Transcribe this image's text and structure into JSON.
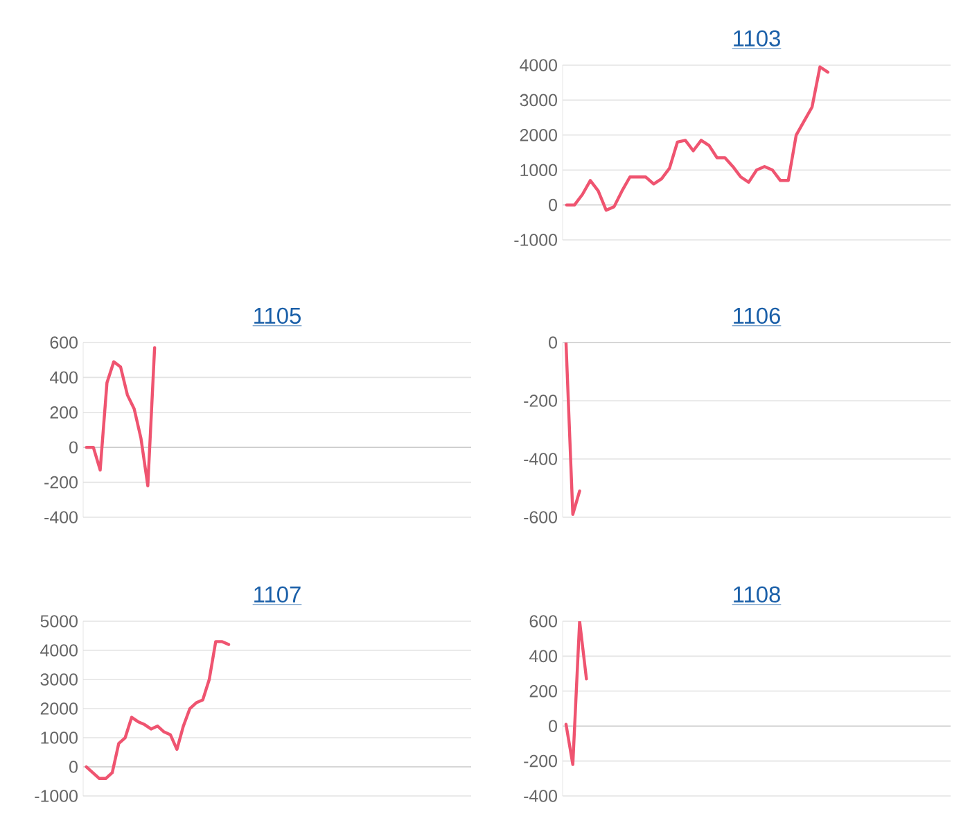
{
  "chart_data": [
    {
      "type": "line",
      "title": "1103",
      "categories": [
        null,
        null,
        null,
        null,
        null,
        null,
        null,
        null,
        null,
        null,
        null,
        null,
        null,
        null,
        null,
        null,
        null,
        null,
        null,
        null,
        null,
        null,
        null,
        null,
        null,
        null,
        null,
        null,
        null,
        null,
        null,
        null,
        null,
        null,
        null,
        null,
        null,
        null,
        null,
        null,
        null,
        null,
        null,
        null,
        null,
        null,
        null,
        null,
        null
      ],
      "series": [
        {
          "color": "#ef5470",
          "values": [
            0,
            0,
            300,
            700,
            400,
            -150,
            -50,
            400,
            800,
            800,
            800,
            600,
            750,
            1050,
            1800,
            1850,
            1550,
            1850,
            1700,
            1350,
            1350,
            1100,
            800,
            650,
            1000,
            1100,
            1000,
            700,
            700,
            2000,
            2400,
            2800,
            3950,
            3800,
            null,
            null,
            null,
            null,
            null,
            null,
            null,
            null,
            null,
            null,
            null,
            null,
            null,
            null,
            null
          ]
        }
      ],
      "ylim": [
        -1000,
        4000
      ],
      "yticks": [
        -1000,
        0,
        1000,
        2000,
        3000,
        4000
      ],
      "grid": "y"
    },
    {
      "type": "line",
      "title": "1105",
      "categories": [
        null,
        null,
        null,
        null,
        null,
        null,
        null,
        null,
        null,
        null,
        null,
        null,
        null,
        null,
        null,
        null,
        null,
        null,
        null,
        null,
        null,
        null,
        null,
        null,
        null,
        null,
        null,
        null,
        null,
        null,
        null,
        null,
        null,
        null,
        null,
        null,
        null,
        null,
        null,
        null,
        null,
        null,
        null,
        null,
        null,
        null,
        null,
        null,
        null,
        null,
        null,
        null,
        null,
        null,
        null,
        null,
        null
      ],
      "series": [
        {
          "color": "#ef5470",
          "values": [
            0,
            0,
            -130,
            370,
            490,
            460,
            300,
            220,
            50,
            -220,
            570,
            null,
            null,
            null,
            null,
            null,
            null,
            null,
            null,
            null,
            null,
            null,
            null,
            null,
            null,
            null,
            null,
            null,
            null,
            null,
            null,
            null,
            null,
            null,
            null,
            null,
            null,
            null,
            null,
            null,
            null,
            null,
            null,
            null,
            null,
            null,
            null,
            null,
            null,
            null,
            null,
            null,
            null,
            null,
            null,
            null,
            null
          ]
        }
      ],
      "ylim": [
        -400,
        600
      ],
      "yticks": [
        -400,
        -200,
        0,
        200,
        400,
        600
      ],
      "grid": "y"
    },
    {
      "type": "line",
      "title": "1106",
      "categories": [
        null,
        null,
        null,
        null,
        null,
        null,
        null,
        null,
        null,
        null,
        null,
        null,
        null,
        null,
        null,
        null,
        null,
        null,
        null,
        null,
        null,
        null,
        null,
        null,
        null,
        null,
        null,
        null,
        null,
        null,
        null,
        null,
        null,
        null,
        null,
        null,
        null,
        null,
        null,
        null,
        null,
        null,
        null,
        null,
        null,
        null,
        null,
        null,
        null,
        null,
        null,
        null,
        null,
        null,
        null,
        null,
        null
      ],
      "series": [
        {
          "color": "#ef5470",
          "values": [
            0,
            -590,
            -510,
            null,
            null,
            null,
            null,
            null,
            null,
            null,
            null,
            null,
            null,
            null,
            null,
            null,
            null,
            null,
            null,
            null,
            null,
            null,
            null,
            null,
            null,
            null,
            null,
            null,
            null,
            null,
            null,
            null,
            null,
            null,
            null,
            null,
            null,
            null,
            null,
            null,
            null,
            null,
            null,
            null,
            null,
            null,
            null,
            null,
            null,
            null,
            null,
            null,
            null,
            null,
            null,
            null,
            null
          ]
        }
      ],
      "ylim": [
        -600,
        0
      ],
      "yticks": [
        -600,
        -400,
        -200,
        0
      ],
      "grid": "y"
    },
    {
      "type": "line",
      "title": "1107",
      "categories": [
        null,
        null,
        null,
        null,
        null,
        null,
        null,
        null,
        null,
        null,
        null,
        null,
        null,
        null,
        null,
        null,
        null,
        null,
        null,
        null,
        null,
        null,
        null,
        null,
        null,
        null,
        null,
        null,
        null,
        null,
        null,
        null,
        null,
        null,
        null,
        null,
        null,
        null,
        null,
        null,
        null,
        null,
        null,
        null,
        null,
        null,
        null,
        null,
        null,
        null,
        null,
        null,
        null,
        null,
        null,
        null,
        null,
        null,
        null,
        null
      ],
      "series": [
        {
          "color": "#ef5470",
          "values": [
            0,
            -200,
            -400,
            -400,
            -200,
            800,
            1000,
            1700,
            1550,
            1450,
            1300,
            1400,
            1200,
            1100,
            600,
            1400,
            2000,
            2200,
            2300,
            3000,
            4300,
            4300,
            4200,
            null,
            null,
            null,
            null,
            null,
            null,
            null,
            null,
            null,
            null,
            null,
            null,
            null,
            null,
            null,
            null,
            null,
            null,
            null,
            null,
            null,
            null,
            null,
            null,
            null,
            null,
            null,
            null,
            null,
            null,
            null,
            null,
            null,
            null,
            null,
            null,
            null
          ]
        }
      ],
      "ylim": [
        -1000,
        5000
      ],
      "yticks": [
        -1000,
        0,
        1000,
        2000,
        3000,
        4000,
        5000
      ],
      "grid": "y"
    },
    {
      "type": "line",
      "title": "1108",
      "categories": [
        null,
        null,
        null,
        null,
        null,
        null,
        null,
        null,
        null,
        null,
        null,
        null,
        null,
        null,
        null,
        null,
        null,
        null,
        null,
        null,
        null,
        null,
        null,
        null,
        null,
        null,
        null,
        null,
        null,
        null,
        null,
        null,
        null,
        null,
        null,
        null,
        null,
        null,
        null,
        null,
        null,
        null,
        null,
        null,
        null,
        null,
        null,
        null,
        null,
        null,
        null,
        null,
        null,
        null,
        null,
        null,
        null
      ],
      "series": [
        {
          "color": "#ef5470",
          "values": [
            10,
            -220,
            600,
            270,
            null,
            null,
            null,
            null,
            null,
            null,
            null,
            null,
            null,
            null,
            null,
            null,
            null,
            null,
            null,
            null,
            null,
            null,
            null,
            null,
            null,
            null,
            null,
            null,
            null,
            null,
            null,
            null,
            null,
            null,
            null,
            null,
            null,
            null,
            null,
            null,
            null,
            null,
            null,
            null,
            null,
            null,
            null,
            null,
            null,
            null,
            null,
            null,
            null,
            null,
            null,
            null,
            null
          ]
        }
      ],
      "ylim": [
        -400,
        600
      ],
      "yticks": [
        -400,
        -200,
        0,
        200,
        400,
        600
      ],
      "grid": "y"
    }
  ]
}
